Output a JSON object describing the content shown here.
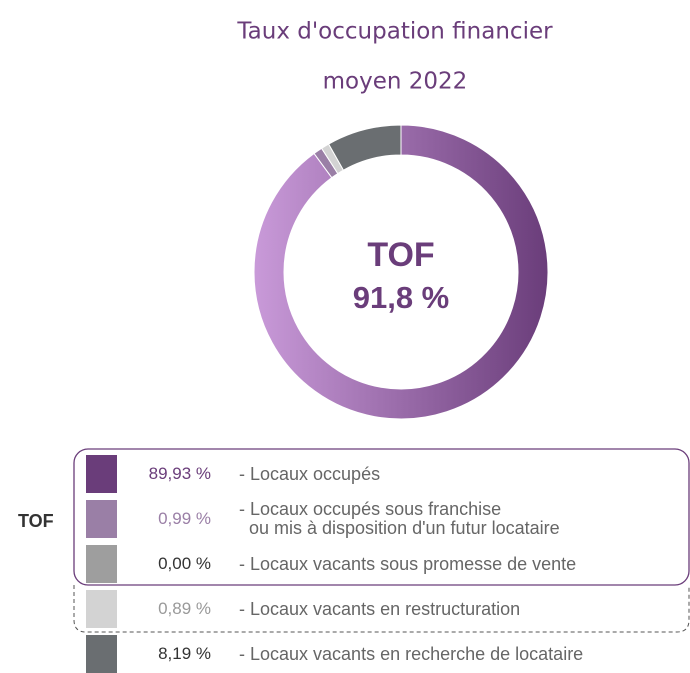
{
  "chart_data": {
    "type": "donut",
    "title_lines": [
      "Taux d'occupation financier",
      "moyen 2022"
    ],
    "center_lines": [
      "TOF",
      "91,8 %"
    ],
    "group_label": "TOF",
    "categories": [
      "- Locaux occupés",
      "- Locaux occupés sous franchise\n  ou mis à disposition d'un futur locataire",
      "- Locaux vacants sous promesse de vente",
      "- Locaux vacants en restructuration",
      "- Locaux vacants en recherche de locataire"
    ],
    "values": [
      89.93,
      0.99,
      0.0,
      0.89,
      8.19
    ],
    "value_labels": [
      "89,93 %",
      "0,99 %",
      "0,00 %",
      "0,89 %",
      "8,19 %"
    ],
    "colors": [
      "#6a3d7a",
      "#9a7fa6",
      "#9e9e9e",
      "#d3d3d3",
      "#6a6e71"
    ]
  }
}
